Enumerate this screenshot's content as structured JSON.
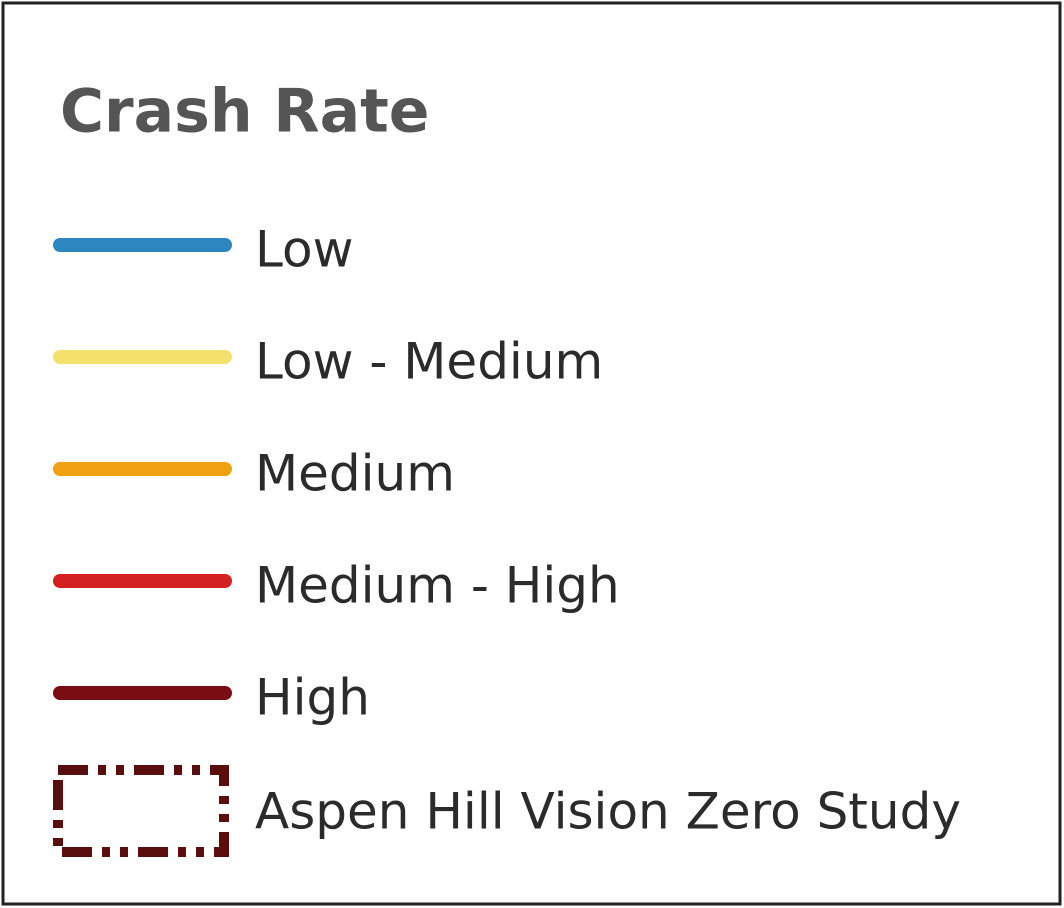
{
  "legend": {
    "title": "Crash Rate",
    "items": [
      {
        "label": "Low",
        "color": "#2e86c1"
      },
      {
        "label": "Low - Medium",
        "color": "#f4e06d"
      },
      {
        "label": "Medium",
        "color": "#f0a010"
      },
      {
        "label": "Medium - High",
        "color": "#d42020"
      },
      {
        "label": "High",
        "color": "#7a0c14"
      }
    ],
    "boundary": {
      "label": "Aspen Hill Vision Zero Study",
      "color": "#5a0e0e"
    }
  }
}
